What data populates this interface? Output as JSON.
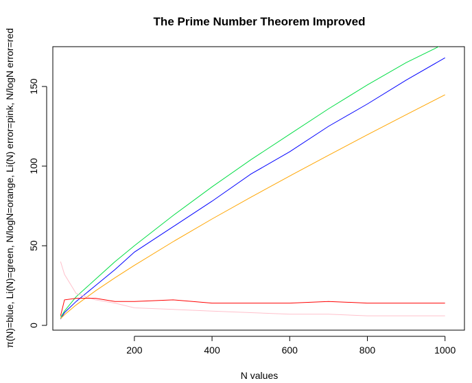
{
  "chart_data": {
    "type": "line",
    "title": "The Prime Number Theorem Improved",
    "xlabel": "N values",
    "ylabel": "π(N)=blue, Li(N)=green, N/logN=orange, Li(N) error=pink, N/logN error=red",
    "xlim": [
      -10,
      1050
    ],
    "ylim": [
      -3,
      175
    ],
    "x_ticks": [
      200,
      400,
      600,
      800,
      1000
    ],
    "y_ticks": [
      0,
      50,
      100,
      150
    ],
    "grid": false,
    "x": [
      10,
      20,
      50,
      100,
      150,
      200,
      300,
      400,
      500,
      600,
      700,
      800,
      900,
      1000
    ],
    "series": [
      {
        "key": "pi_N",
        "color": "#0000ff",
        "values": [
          4,
          8,
          15,
          25,
          35,
          46,
          62,
          78,
          95,
          109,
          125,
          139,
          154,
          168
        ]
      },
      {
        "key": "li_N",
        "color": "#00dd44",
        "values": [
          5,
          9,
          18,
          29,
          40,
          50,
          69,
          87,
          104,
          120,
          136,
          151,
          165,
          177
        ]
      },
      {
        "key": "n_over_log_n",
        "color": "#ffa500",
        "values": [
          4.3,
          6.7,
          12.8,
          21.7,
          29.9,
          37.7,
          52.6,
          66.8,
          80.5,
          93.8,
          106.8,
          119.7,
          132.3,
          144.8
        ]
      },
      {
        "key": "li_error",
        "color": "#ffc0cb",
        "values": [
          40,
          32,
          20,
          16,
          14,
          11,
          10,
          9,
          8,
          7,
          7,
          6,
          6,
          6
        ]
      },
      {
        "key": "n_log_n_error",
        "color": "#ff0000",
        "values": [
          6,
          16,
          17,
          17,
          15,
          15,
          16,
          14,
          14,
          14,
          15,
          14,
          14,
          14
        ]
      }
    ],
    "colors": {
      "pi_N": "#0000ff",
      "li_N": "#00dd44",
      "n_over_log_n": "#ffa500",
      "li_error": "#ffc0cb",
      "n_log_n_error": "#ff0000"
    }
  }
}
